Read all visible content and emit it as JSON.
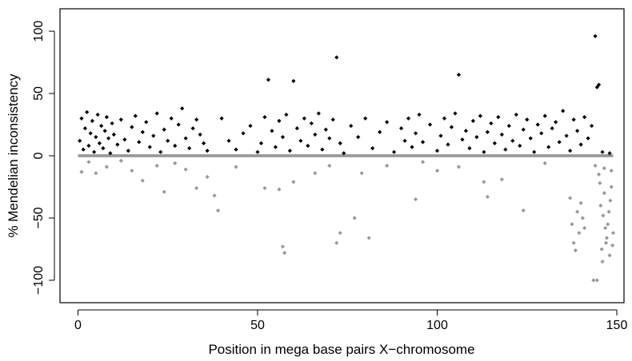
{
  "chart_data": {
    "type": "scatter",
    "title": "",
    "xlabel": "Position in mega base pairs X−chromosome",
    "ylabel": "% Mendelian inconsistency",
    "xlim": [
      -5,
      152
    ],
    "ylim": [
      -118,
      118
    ],
    "xticks": [
      0,
      50,
      100,
      150
    ],
    "xtick_labels": [
      "0",
      "50",
      "100",
      "150"
    ],
    "yticks": [
      -100,
      -50,
      0,
      50,
      100
    ],
    "ytick_labels": [
      "−100",
      "−50",
      "0",
      "50",
      "100"
    ],
    "grid": false,
    "legend": "none",
    "colors": {
      "positive": "#000000",
      "negative": "#999999",
      "frame": "#000000"
    },
    "series": [
      {
        "color": "#000000",
        "description_points": "positive values",
        "points": [
          [
            0.5,
            12
          ],
          [
            1.0,
            30
          ],
          [
            1.5,
            5
          ],
          [
            2.0,
            22
          ],
          [
            2.5,
            35
          ],
          [
            3.0,
            8
          ],
          [
            3.5,
            18
          ],
          [
            4.0,
            28
          ],
          [
            4.5,
            3
          ],
          [
            5.0,
            15
          ],
          [
            5.5,
            33
          ],
          [
            6.0,
            10
          ],
          [
            6.5,
            24
          ],
          [
            7.0,
            6
          ],
          [
            7.5,
            20
          ],
          [
            8.0,
            31
          ],
          [
            8.5,
            14
          ],
          [
            9.0,
            2
          ],
          [
            9.5,
            26
          ],
          [
            10.0,
            17
          ],
          [
            11,
            9
          ],
          [
            12,
            29
          ],
          [
            13,
            13
          ],
          [
            14,
            4
          ],
          [
            15,
            23
          ],
          [
            16,
            32
          ],
          [
            17,
            11
          ],
          [
            18,
            19
          ],
          [
            19,
            27
          ],
          [
            20,
            7
          ],
          [
            21,
            16
          ],
          [
            22,
            34
          ],
          [
            23,
            3
          ],
          [
            24,
            21
          ],
          [
            25,
            12
          ],
          [
            26,
            30
          ],
          [
            27,
            8
          ],
          [
            28,
            25
          ],
          [
            29,
            38
          ],
          [
            30,
            14
          ],
          [
            31,
            6
          ],
          [
            32,
            22
          ],
          [
            33,
            29
          ],
          [
            34,
            17
          ],
          [
            35,
            10
          ],
          [
            36,
            4
          ],
          [
            40,
            30
          ],
          [
            42,
            12
          ],
          [
            44,
            5
          ],
          [
            46,
            18
          ],
          [
            48,
            24
          ],
          [
            50,
            3
          ],
          [
            51,
            10
          ],
          [
            52,
            31
          ],
          [
            53,
            61
          ],
          [
            54,
            20
          ],
          [
            55,
            7
          ],
          [
            56,
            28
          ],
          [
            57,
            15
          ],
          [
            58,
            33
          ],
          [
            59,
            4
          ],
          [
            60,
            60
          ],
          [
            61,
            22
          ],
          [
            62,
            12
          ],
          [
            63,
            30
          ],
          [
            64,
            8
          ],
          [
            65,
            26
          ],
          [
            66,
            17
          ],
          [
            67,
            34
          ],
          [
            68,
            5
          ],
          [
            69,
            21
          ],
          [
            70,
            14
          ],
          [
            71,
            29
          ],
          [
            72,
            79
          ],
          [
            73,
            10
          ],
          [
            74,
            2
          ],
          [
            76,
            24
          ],
          [
            78,
            15
          ],
          [
            80,
            30
          ],
          [
            82,
            6
          ],
          [
            84,
            19
          ],
          [
            86,
            27
          ],
          [
            88,
            3
          ],
          [
            90,
            22
          ],
          [
            91,
            12
          ],
          [
            92,
            30
          ],
          [
            93,
            7
          ],
          [
            94,
            18
          ],
          [
            95,
            33
          ],
          [
            96,
            11
          ],
          [
            98,
            25
          ],
          [
            100,
            4
          ],
          [
            101,
            16
          ],
          [
            102,
            30
          ],
          [
            103,
            9
          ],
          [
            104,
            23
          ],
          [
            105,
            34
          ],
          [
            106,
            65
          ],
          [
            107,
            13
          ],
          [
            108,
            20
          ],
          [
            109,
            6
          ],
          [
            110,
            28
          ],
          [
            111,
            15
          ],
          [
            112,
            32
          ],
          [
            113,
            3
          ],
          [
            114,
            19
          ],
          [
            115,
            26
          ],
          [
            116,
            10
          ],
          [
            117,
            31
          ],
          [
            118,
            17
          ],
          [
            119,
            5
          ],
          [
            120,
            24
          ],
          [
            121,
            12
          ],
          [
            122,
            33
          ],
          [
            123,
            8
          ],
          [
            124,
            21
          ],
          [
            125,
            29
          ],
          [
            126,
            14
          ],
          [
            127,
            3
          ],
          [
            128,
            25
          ],
          [
            129,
            18
          ],
          [
            130,
            32
          ],
          [
            131,
            7
          ],
          [
            132,
            22
          ],
          [
            133,
            27
          ],
          [
            134,
            11
          ],
          [
            135,
            36
          ],
          [
            136,
            16
          ],
          [
            137,
            4
          ],
          [
            138,
            29
          ],
          [
            139,
            20
          ],
          [
            140,
            9
          ],
          [
            141,
            31
          ],
          [
            142,
            14
          ],
          [
            143,
            24
          ],
          [
            144,
            96
          ],
          [
            144.5,
            55
          ],
          [
            145,
            57
          ],
          [
            146,
            3
          ],
          [
            148,
            2
          ]
        ]
      },
      {
        "color": "#999999",
        "description_points": "negative values",
        "points": [
          [
            1,
            -13
          ],
          [
            3,
            -5
          ],
          [
            5,
            -14
          ],
          [
            8,
            -9
          ],
          [
            12,
            -4
          ],
          [
            15,
            -12
          ],
          [
            18,
            -20
          ],
          [
            22,
            -8
          ],
          [
            24,
            -29
          ],
          [
            27,
            -6
          ],
          [
            30,
            -11
          ],
          [
            33,
            -26
          ],
          [
            36,
            -17
          ],
          [
            38,
            -32
          ],
          [
            39,
            -44
          ],
          [
            44,
            -9
          ],
          [
            52,
            -26
          ],
          [
            56,
            -27
          ],
          [
            57,
            -73
          ],
          [
            57.5,
            -78
          ],
          [
            60,
            -21
          ],
          [
            66,
            -14
          ],
          [
            70,
            -8
          ],
          [
            72,
            -70
          ],
          [
            73,
            -62
          ],
          [
            77,
            -50
          ],
          [
            79,
            -14
          ],
          [
            81,
            -66
          ],
          [
            86,
            -8
          ],
          [
            94,
            -35
          ],
          [
            96,
            -5
          ],
          [
            100,
            -12
          ],
          [
            106,
            -9
          ],
          [
            113,
            -21
          ],
          [
            114,
            -33
          ],
          [
            118,
            -19
          ],
          [
            124,
            -44
          ],
          [
            130,
            -6
          ],
          [
            137,
            -34
          ],
          [
            137.5,
            -55
          ],
          [
            138,
            -70
          ],
          [
            138.5,
            -76
          ],
          [
            139,
            -45
          ],
          [
            139.5,
            -62
          ],
          [
            140,
            -38
          ],
          [
            140.5,
            -50
          ],
          [
            141,
            -58
          ],
          [
            143.5,
            -100
          ],
          [
            144.5,
            -100
          ],
          [
            144,
            -8
          ],
          [
            145,
            -15
          ],
          [
            145.5,
            -40
          ],
          [
            146,
            -85
          ],
          [
            146.5,
            -30
          ],
          [
            147,
            -70
          ],
          [
            147.5,
            -55
          ],
          [
            148,
            -80
          ],
          [
            148.5,
            -25
          ],
          [
            149,
            -62
          ],
          [
            146.2,
            -48
          ],
          [
            147.2,
            -66
          ],
          [
            148.2,
            -36
          ],
          [
            145.8,
            -75
          ],
          [
            146.8,
            -58
          ],
          [
            147.8,
            -45
          ],
          [
            148.8,
            -72
          ],
          [
            145.3,
            -22
          ],
          [
            146.5,
            -10
          ],
          [
            148.5,
            -12
          ]
        ]
      }
    ]
  }
}
